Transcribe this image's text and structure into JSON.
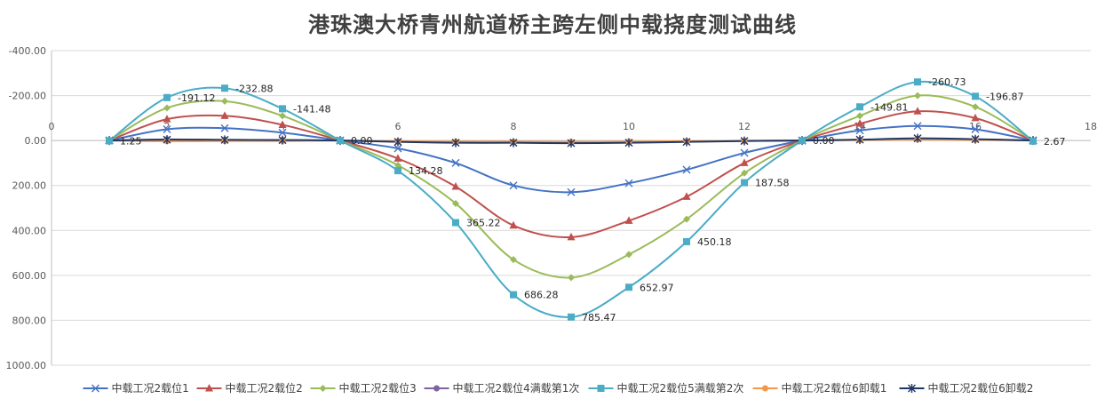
{
  "chart_data": {
    "type": "line",
    "title": "港珠澳大桥青州航道桥主跨左侧中载挠度测试曲线",
    "xlabel": "",
    "ylabel": "",
    "xlim": [
      0,
      18
    ],
    "ylim": [
      -400,
      1000
    ],
    "y_reversed": true,
    "x_ticks": [
      0,
      2,
      4,
      6,
      8,
      10,
      12,
      14,
      16,
      18
    ],
    "y_ticks": [
      -400,
      -200,
      0,
      200,
      400,
      600,
      800,
      1000
    ],
    "x_tick_labels": [
      "0",
      "2",
      "4",
      "6",
      "8",
      "10",
      "12",
      "14",
      "16",
      "18"
    ],
    "y_tick_labels": [
      "-400.00",
      "-200.00",
      "0.00",
      "200.00",
      "400.00",
      "600.00",
      "800.00",
      "1000.00"
    ],
    "grid": "horizontal",
    "legend_position": "bottom",
    "x": [
      1,
      2,
      3,
      4,
      5,
      6,
      7,
      8,
      9,
      10,
      11,
      12,
      13,
      14,
      15,
      16,
      17
    ],
    "series": [
      {
        "name": "中载工况2载位1",
        "color": "#4472C4",
        "marker": "x",
        "values": [
          0,
          -50,
          -55,
          -35,
          0,
          35,
          100,
          200,
          230,
          190,
          130,
          55,
          0,
          -45,
          -65,
          -50,
          0
        ]
      },
      {
        "name": "中载工况2载位2",
        "color": "#C0504D",
        "marker": "triangle",
        "values": [
          0,
          -95,
          -110,
          -70,
          0,
          80,
          205,
          378,
          430,
          357,
          250,
          100,
          0,
          -75,
          -130,
          -100,
          0
        ]
      },
      {
        "name": "中载工况2载位3",
        "color": "#9BBB59",
        "marker": "diamond",
        "values": [
          0,
          -145,
          -175,
          -110,
          0,
          110,
          280,
          530,
          610,
          507,
          350,
          145,
          0,
          -110,
          -200,
          -150,
          0
        ]
      },
      {
        "name": "中载工况2载位4满载第1次",
        "color": "#8064A2",
        "marker": "circle",
        "values": [
          0,
          -5,
          -3,
          -2,
          0,
          5,
          8,
          8,
          10,
          8,
          5,
          2,
          0,
          -3,
          -8,
          -5,
          0
        ]
      },
      {
        "name": "中载工况2载位5满载第2次",
        "color": "#4BACC6",
        "marker": "square",
        "values": [
          1.25,
          -191.12,
          -232.88,
          -141.48,
          0.0,
          134.28,
          365.22,
          686.28,
          785.47,
          652.97,
          450.18,
          187.58,
          0.0,
          -149.81,
          -260.73,
          -196.87,
          2.67
        ]
      },
      {
        "name": "中载工况2载位6卸载1",
        "color": "#F79646",
        "marker": "circle",
        "values": [
          0,
          3,
          2,
          2,
          0,
          3,
          5,
          5,
          6,
          5,
          3,
          1,
          0,
          -2,
          -5,
          -3,
          0
        ]
      },
      {
        "name": "中载工况2载位6卸载2",
        "color": "#1F3864",
        "marker": "star",
        "values": [
          0,
          -4,
          -3,
          -2,
          0,
          6,
          10,
          10,
          12,
          10,
          6,
          2,
          0,
          -4,
          -10,
          -6,
          0
        ]
      }
    ],
    "data_labels": [
      {
        "series": 4,
        "index": 0,
        "text": "1.25"
      },
      {
        "series": 4,
        "index": 1,
        "text": "-191.12"
      },
      {
        "series": 4,
        "index": 2,
        "text": "-232.88"
      },
      {
        "series": 4,
        "index": 3,
        "text": "-141.48"
      },
      {
        "series": 4,
        "index": 4,
        "text": "0.00"
      },
      {
        "series": 4,
        "index": 5,
        "text": "134.28"
      },
      {
        "series": 4,
        "index": 6,
        "text": "365.22"
      },
      {
        "series": 4,
        "index": 7,
        "text": "686.28"
      },
      {
        "series": 4,
        "index": 8,
        "text": "785.47"
      },
      {
        "series": 4,
        "index": 9,
        "text": "652.97"
      },
      {
        "series": 4,
        "index": 10,
        "text": "450.18"
      },
      {
        "series": 4,
        "index": 11,
        "text": "187.58"
      },
      {
        "series": 4,
        "index": 12,
        "text": "0.00"
      },
      {
        "series": 4,
        "index": 13,
        "text": "-149.81"
      },
      {
        "series": 4,
        "index": 14,
        "text": "-260.73"
      },
      {
        "series": 4,
        "index": 15,
        "text": "-196.87"
      },
      {
        "series": 4,
        "index": 16,
        "text": "2.67"
      }
    ]
  }
}
